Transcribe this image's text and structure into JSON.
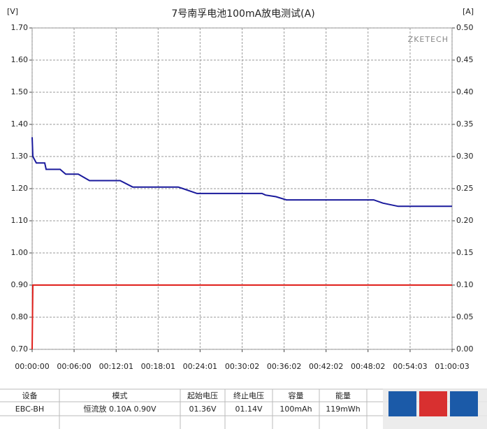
{
  "chart_data": {
    "type": "line",
    "title": "7号南孚电池100mA放电测试(A)",
    "y_unit": "[V]",
    "y2_unit": "[A]",
    "watermark": "ZKETECH",
    "xlim": [
      0,
      3603
    ],
    "xticks": [
      {
        "value": 0,
        "label": "00:00:00"
      },
      {
        "value": 360,
        "label": "00:06:00"
      },
      {
        "value": 721,
        "label": "00:12:01"
      },
      {
        "value": 1081,
        "label": "00:18:01"
      },
      {
        "value": 1441,
        "label": "00:24:01"
      },
      {
        "value": 1802,
        "label": "00:30:02"
      },
      {
        "value": 2162,
        "label": "00:36:02"
      },
      {
        "value": 2522,
        "label": "00:42:02"
      },
      {
        "value": 2882,
        "label": "00:48:02"
      },
      {
        "value": 3243,
        "label": "00:54:03"
      },
      {
        "value": 3603,
        "label": "01:00:03"
      }
    ],
    "ylim": [
      0.7,
      1.7
    ],
    "yticks": [
      {
        "value": 0.7,
        "label": "0.70"
      },
      {
        "value": 0.8,
        "label": "0.80"
      },
      {
        "value": 0.9,
        "label": "0.90"
      },
      {
        "value": 1.0,
        "label": "1.00"
      },
      {
        "value": 1.1,
        "label": "1.10"
      },
      {
        "value": 1.2,
        "label": "1.20"
      },
      {
        "value": 1.3,
        "label": "1.30"
      },
      {
        "value": 1.4,
        "label": "1.40"
      },
      {
        "value": 1.5,
        "label": "1.50"
      },
      {
        "value": 1.6,
        "label": "1.60"
      },
      {
        "value": 1.7,
        "label": "1.70"
      }
    ],
    "y2lim": [
      0,
      0.5
    ],
    "y2ticks": [
      {
        "value": 0,
        "label": "0.00"
      },
      {
        "value": 0.05,
        "label": "0.05"
      },
      {
        "value": 0.1,
        "label": "0.10"
      },
      {
        "value": 0.15,
        "label": "0.15"
      },
      {
        "value": 0.2,
        "label": "0.20"
      },
      {
        "value": 0.25,
        "label": "0.25"
      },
      {
        "value": 0.3,
        "label": "0.30"
      },
      {
        "value": 0.35,
        "label": "0.35"
      },
      {
        "value": 0.4,
        "label": "0.40"
      },
      {
        "value": 0.45,
        "label": "0.45"
      },
      {
        "value": 0.5,
        "label": "0.50"
      }
    ],
    "grid": true,
    "series": [
      {
        "color": "#1a1a9c",
        "x": [
          0,
          6,
          36,
          108,
          120,
          240,
          288,
          396,
          444,
          492,
          755,
          863,
          1253,
          1295,
          1415,
          1972,
          2002,
          2092,
          2182,
          2931,
          3009,
          3141,
          3603
        ],
        "values": [
          1.36,
          1.3,
          1.28,
          1.28,
          1.26,
          1.26,
          1.245,
          1.245,
          1.235,
          1.225,
          1.225,
          1.205,
          1.205,
          1.2,
          1.185,
          1.185,
          1.18,
          1.175,
          1.165,
          1.165,
          1.155,
          1.145,
          1.145
        ]
      },
      {
        "color": "#e0201c",
        "axis": "y2",
        "x": [
          0,
          6,
          3603
        ],
        "values": [
          0,
          0.1,
          0.1
        ]
      }
    ]
  },
  "table": {
    "header": [
      "设备",
      "模式",
      "起始电压",
      "终止电压",
      "容量",
      "能量"
    ],
    "rows": [
      [
        "EBC-BH",
        "恒流放  0.10A  0.90V",
        "01.36V",
        "01.14V",
        "100mAh",
        "119mWh"
      ]
    ]
  }
}
